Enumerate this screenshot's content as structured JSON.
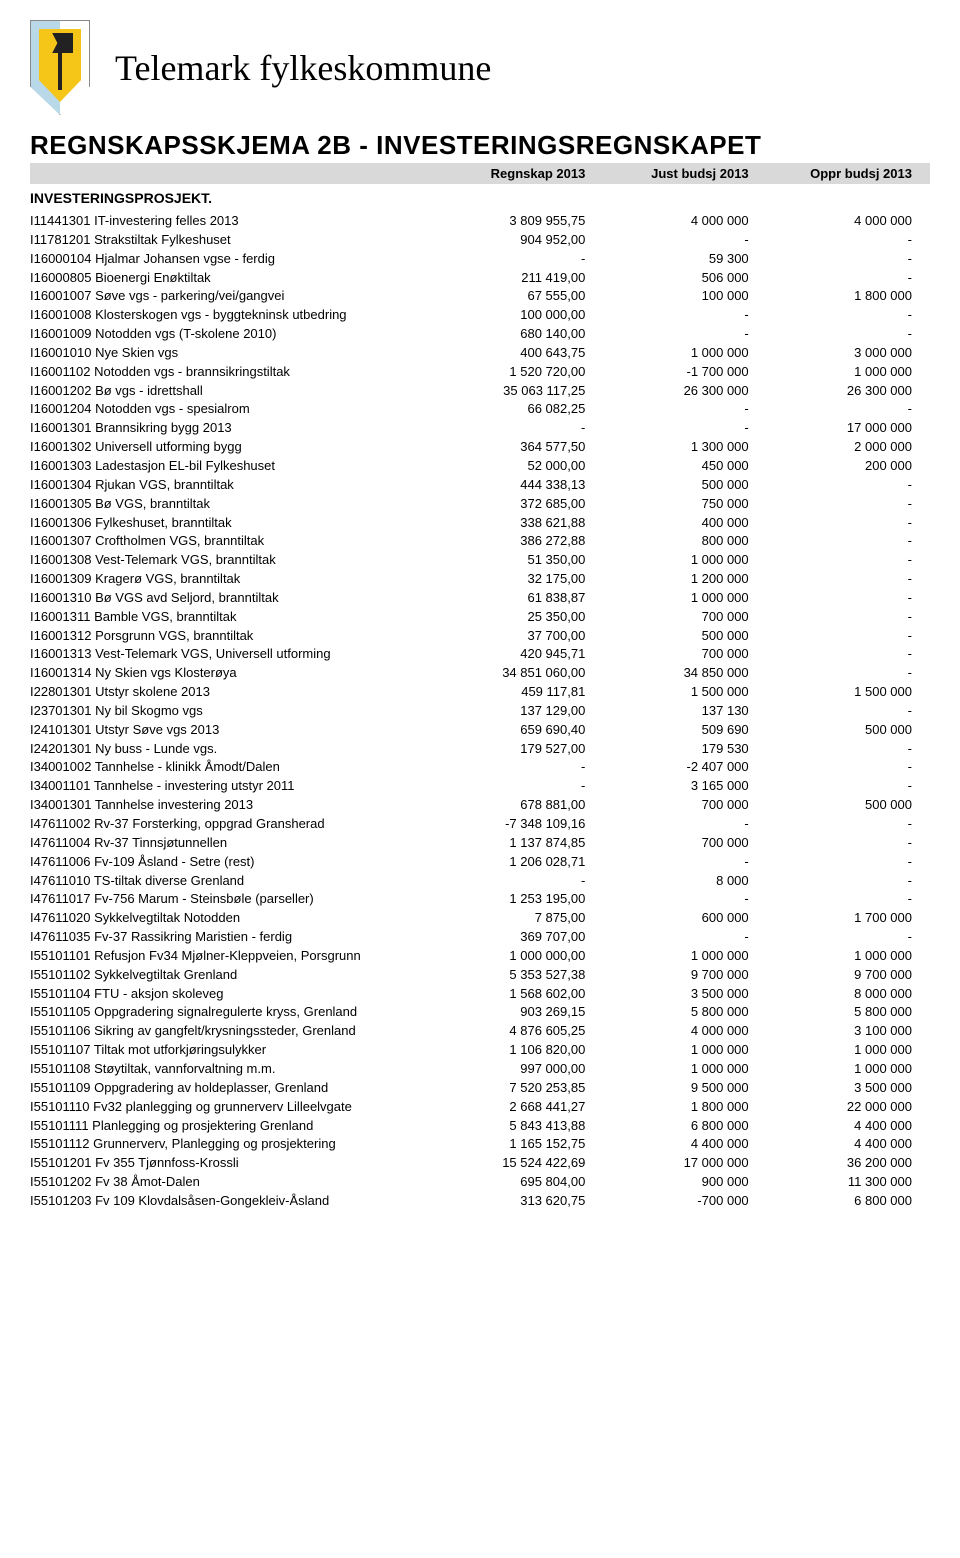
{
  "org_title": "Telemark fylkeskommune",
  "schema_title": "REGNSKAPSSKJEMA 2B - INVESTERINGSREGNSKAPET",
  "columns": [
    "Regnskap 2013",
    "Just budsj 2013",
    "Oppr budsj 2013"
  ],
  "section_title": "INVESTERINGSPROSJEKT.",
  "rows": [
    {
      "label": "I11441301 IT-investering felles 2013",
      "c1": "3 809 955,75",
      "c2": "4 000 000",
      "c3": "4 000 000"
    },
    {
      "label": "I11781201 Strakstiltak Fylkeshuset",
      "c1": "904 952,00",
      "c2": "-",
      "c3": "-"
    },
    {
      "label": "I16000104 Hjalmar Johansen vgse - ferdig",
      "c1": "-",
      "c2": "59 300",
      "c3": "-"
    },
    {
      "label": "I16000805 Bioenergi Enøktiltak",
      "c1": "211 419,00",
      "c2": "506 000",
      "c3": "-"
    },
    {
      "label": "I16001007 Søve vgs - parkering/vei/gangvei",
      "c1": "67 555,00",
      "c2": "100 000",
      "c3": "1 800 000"
    },
    {
      "label": "I16001008 Klosterskogen vgs - byggtekninsk utbedring",
      "c1": "100 000,00",
      "c2": "-",
      "c3": "-"
    },
    {
      "label": "I16001009 Notodden vgs  (T-skolene 2010)",
      "c1": "680 140,00",
      "c2": "-",
      "c3": "-"
    },
    {
      "label": "I16001010 Nye Skien vgs",
      "c1": "400 643,75",
      "c2": "1 000 000",
      "c3": "3 000 000"
    },
    {
      "label": "I16001102 Notodden vgs - brannsikringstiltak",
      "c1": "1 520 720,00",
      "c2": "-1 700 000",
      "c3": "1 000 000"
    },
    {
      "label": "I16001202 Bø vgs - idrettshall",
      "c1": "35 063 117,25",
      "c2": "26 300 000",
      "c3": "26 300 000"
    },
    {
      "label": "I16001204 Notodden vgs - spesialrom",
      "c1": "66 082,25",
      "c2": "-",
      "c3": "-"
    },
    {
      "label": "I16001301 Brannsikring bygg 2013",
      "c1": "-",
      "c2": "-",
      "c3": "17 000 000"
    },
    {
      "label": "I16001302 Universell utforming bygg",
      "c1": "364 577,50",
      "c2": "1 300 000",
      "c3": "2 000 000"
    },
    {
      "label": "I16001303 Ladestasjon EL-bil Fylkeshuset",
      "c1": "52 000,00",
      "c2": "450 000",
      "c3": "200 000"
    },
    {
      "label": "I16001304 Rjukan VGS, branntiltak",
      "c1": "444 338,13",
      "c2": "500 000",
      "c3": "-"
    },
    {
      "label": "I16001305 Bø VGS, branntiltak",
      "c1": "372 685,00",
      "c2": "750 000",
      "c3": "-"
    },
    {
      "label": "I16001306 Fylkeshuset, branntiltak",
      "c1": "338 621,88",
      "c2": "400 000",
      "c3": "-"
    },
    {
      "label": "I16001307 Croftholmen VGS, branntiltak",
      "c1": "386 272,88",
      "c2": "800 000",
      "c3": "-"
    },
    {
      "label": "I16001308 Vest-Telemark VGS, branntiltak",
      "c1": "51 350,00",
      "c2": "1 000 000",
      "c3": "-"
    },
    {
      "label": "I16001309 Kragerø VGS, branntiltak",
      "c1": "32 175,00",
      "c2": "1 200 000",
      "c3": "-"
    },
    {
      "label": "I16001310 Bø VGS avd Seljord, branntiltak",
      "c1": "61 838,87",
      "c2": "1 000 000",
      "c3": "-"
    },
    {
      "label": "I16001311 Bamble VGS, branntiltak",
      "c1": "25 350,00",
      "c2": "700 000",
      "c3": "-"
    },
    {
      "label": "I16001312 Porsgrunn VGS, branntiltak",
      "c1": "37 700,00",
      "c2": "500 000",
      "c3": "-"
    },
    {
      "label": "I16001313 Vest-Telemark VGS, Universell utforming",
      "c1": "420 945,71",
      "c2": "700 000",
      "c3": "-"
    },
    {
      "label": "I16001314 Ny Skien vgs Klosterøya",
      "c1": "34 851 060,00",
      "c2": "34 850 000",
      "c3": "-"
    },
    {
      "label": "I22801301 Utstyr skolene 2013",
      "c1": "459 117,81",
      "c2": "1 500 000",
      "c3": "1 500 000"
    },
    {
      "label": "I23701301 Ny bil Skogmo vgs",
      "c1": "137 129,00",
      "c2": "137 130",
      "c3": "-"
    },
    {
      "label": "I24101301 Utstyr Søve vgs 2013",
      "c1": "659 690,40",
      "c2": "509 690",
      "c3": "500 000"
    },
    {
      "label": "I24201301 Ny buss - Lunde vgs.",
      "c1": "179 527,00",
      "c2": "179 530",
      "c3": "-"
    },
    {
      "label": "I34001002 Tannhelse - klinikk Åmodt/Dalen",
      "c1": "-",
      "c2": "-2 407 000",
      "c3": "-"
    },
    {
      "label": "I34001101 Tannhelse - investering utstyr 2011",
      "c1": "-",
      "c2": "3 165 000",
      "c3": "-"
    },
    {
      "label": "I34001301 Tannhelse investering 2013",
      "c1": "678 881,00",
      "c2": "700 000",
      "c3": "500 000"
    },
    {
      "label": "I47611002 Rv-37 Forsterking, oppgrad Gransherad",
      "c1": "-7 348 109,16",
      "c2": "-",
      "c3": "-"
    },
    {
      "label": "I47611004 Rv-37 Tinnsjøtunnellen",
      "c1": "1 137 874,85",
      "c2": "700 000",
      "c3": "-"
    },
    {
      "label": "I47611006 Fv-109 Åsland - Setre (rest)",
      "c1": "1 206 028,71",
      "c2": "-",
      "c3": "-"
    },
    {
      "label": "I47611010 TS-tiltak diverse Grenland",
      "c1": "-",
      "c2": "8 000",
      "c3": "-"
    },
    {
      "label": "I47611017 Fv-756 Marum - Steinsbøle (parseller)",
      "c1": "1 253 195,00",
      "c2": "-",
      "c3": "-"
    },
    {
      "label": "I47611020 Sykkelvegtiltak Notodden",
      "c1": "7 875,00",
      "c2": "600 000",
      "c3": "1 700 000"
    },
    {
      "label": "I47611035 Fv-37 Rassikring Maristien - ferdig",
      "c1": "369 707,00",
      "c2": "-",
      "c3": "-"
    },
    {
      "label": "I55101101 Refusjon Fv34 Mjølner-Kleppveien, Porsgrunn",
      "c1": "1 000 000,00",
      "c2": "1 000 000",
      "c3": "1 000 000"
    },
    {
      "label": "I55101102 Sykkelvegtiltak Grenland",
      "c1": "5 353 527,38",
      "c2": "9 700 000",
      "c3": "9 700 000"
    },
    {
      "label": "I55101104 FTU - aksjon skoleveg",
      "c1": "1 568 602,00",
      "c2": "3 500 000",
      "c3": "8 000 000"
    },
    {
      "label": "I55101105 Oppgradering signalregulerte kryss, Grenland",
      "c1": "903 269,15",
      "c2": "5 800 000",
      "c3": "5 800 000"
    },
    {
      "label": "I55101106 Sikring av gangfelt/krysningssteder, Grenland",
      "c1": "4 876 605,25",
      "c2": "4 000 000",
      "c3": "3 100 000"
    },
    {
      "label": "I55101107 Tiltak mot utforkjøringsulykker",
      "c1": "1 106 820,00",
      "c2": "1 000 000",
      "c3": "1 000 000"
    },
    {
      "label": "I55101108 Støytiltak, vannforvaltning m.m.",
      "c1": "997 000,00",
      "c2": "1 000 000",
      "c3": "1 000 000"
    },
    {
      "label": "I55101109 Oppgradering av holdeplasser, Grenland",
      "c1": "7 520 253,85",
      "c2": "9 500 000",
      "c3": "3 500 000"
    },
    {
      "label": "I55101110 Fv32 planlegging og grunnerverv Lilleelvgate",
      "c1": "2 668 441,27",
      "c2": "1 800 000",
      "c3": "22 000 000"
    },
    {
      "label": "I55101111 Planlegging og prosjektering Grenland",
      "c1": "5 843 413,88",
      "c2": "6 800 000",
      "c3": "4 400 000"
    },
    {
      "label": "I55101112 Grunnerverv, Planlegging og prosjektering",
      "c1": "1 165 152,75",
      "c2": "4 400 000",
      "c3": "4 400 000"
    },
    {
      "label": "I55101201 Fv 355 Tjønnfoss-Krossli",
      "c1": "15 524 422,69",
      "c2": "17 000 000",
      "c3": "36 200 000"
    },
    {
      "label": "I55101202 Fv 38 Åmot-Dalen",
      "c1": "695 804,00",
      "c2": "900 000",
      "c3": "11 300 000"
    },
    {
      "label": "I55101203 Fv 109 Klovdalsåsen-Gongekleiv-Åsland",
      "c1": "313 620,75",
      "c2": "-700 000",
      "c3": "6 800 000"
    }
  ]
}
